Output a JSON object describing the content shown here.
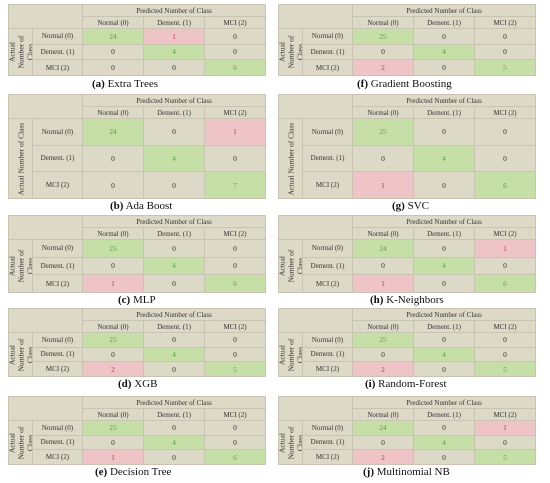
{
  "predicted_label": "Predicted Number of Class",
  "actual_label_long": "Actual Number of Class",
  "actual_label_short": "Actual Number of Class",
  "classes": [
    "Normal (0)",
    "Dement. (1)",
    "MCI (2)"
  ],
  "captions": [
    {
      "letter": "(a)",
      "name": "Extra Trees"
    },
    {
      "letter": "(b)",
      "name": "Ada Boost"
    },
    {
      "letter": "(c)",
      "name": "MLP"
    },
    {
      "letter": "(d)",
      "name": "XGB"
    },
    {
      "letter": "(e)",
      "name": "Decision Tree"
    },
    {
      "letter": "(f)",
      "name": "Gradient Boosting"
    },
    {
      "letter": "(g)",
      "name": "SVC"
    },
    {
      "letter": "(h)",
      "name": "K-Neighbors"
    },
    {
      "letter": "(i)",
      "name": "Random-Forest"
    },
    {
      "letter": "(j)",
      "name": "Multinomial NB"
    }
  ],
  "chart_data": [
    {
      "type": "heatmap",
      "title": "Extra Trees",
      "xlabel": "Predicted Number of Class",
      "ylabel": "Actual Number of Class",
      "rows": [
        "Normal (0)",
        "Dement. (1)",
        "MCI (2)"
      ],
      "cols": [
        "Normal (0)",
        "Dement. (1)",
        "MCI (2)"
      ],
      "values": [
        [
          24,
          1,
          0
        ],
        [
          0,
          4,
          0
        ],
        [
          0,
          0,
          6
        ]
      ]
    },
    {
      "type": "heatmap",
      "title": "Ada Boost",
      "xlabel": "Predicted Number of Class",
      "ylabel": "Actual Number of Class",
      "rows": [
        "Normal (0)",
        "Dement. (1)",
        "MCI (2)"
      ],
      "cols": [
        "Normal (0)",
        "Dement. (1)",
        "MCI (2)"
      ],
      "values": [
        [
          24,
          0,
          1
        ],
        [
          0,
          4,
          0
        ],
        [
          0,
          0,
          7
        ]
      ]
    },
    {
      "type": "heatmap",
      "title": "MLP",
      "xlabel": "Predicted Number of Class",
      "ylabel": "Actual Number of Class",
      "rows": [
        "Normal (0)",
        "Dement. (1)",
        "MCI (2)"
      ],
      "cols": [
        "Normal (0)",
        "Dement. (1)",
        "MCI (2)"
      ],
      "values": [
        [
          25,
          0,
          0
        ],
        [
          0,
          4,
          0
        ],
        [
          1,
          0,
          6
        ]
      ]
    },
    {
      "type": "heatmap",
      "title": "XGB",
      "xlabel": "Predicted Number of Class",
      "ylabel": "Actual Number of Class",
      "rows": [
        "Normal (0)",
        "Dement. (1)",
        "MCI (2)"
      ],
      "cols": [
        "Normal (0)",
        "Dement. (1)",
        "MCI (2)"
      ],
      "values": [
        [
          25,
          0,
          0
        ],
        [
          0,
          4,
          0
        ],
        [
          2,
          0,
          5
        ]
      ]
    },
    {
      "type": "heatmap",
      "title": "Decision Tree",
      "xlabel": "Predicted Number of Class",
      "ylabel": "Actual Number of Class",
      "rows": [
        "Normal (0)",
        "Dement. (1)",
        "MCI (2)"
      ],
      "cols": [
        "Normal (0)",
        "Dement. (1)",
        "MCI (2)"
      ],
      "values": [
        [
          25,
          0,
          0
        ],
        [
          0,
          4,
          0
        ],
        [
          1,
          0,
          6
        ]
      ]
    },
    {
      "type": "heatmap",
      "title": "Gradient Boosting",
      "xlabel": "Predicted Number of Class",
      "ylabel": "Actual Number of Class",
      "rows": [
        "Normal (0)",
        "Dement. (1)",
        "MCI (2)"
      ],
      "cols": [
        "Normal (0)",
        "Dement. (1)",
        "MCI (2)"
      ],
      "values": [
        [
          25,
          0,
          0
        ],
        [
          0,
          4,
          0
        ],
        [
          2,
          0,
          5
        ]
      ]
    },
    {
      "type": "heatmap",
      "title": "SVC",
      "xlabel": "Predicted Number of Class",
      "ylabel": "Actual Number of Class",
      "rows": [
        "Normal (0)",
        "Dement. (1)",
        "MCI (2)"
      ],
      "cols": [
        "Normal (0)",
        "Dement. (1)",
        "MCI (2)"
      ],
      "values": [
        [
          25,
          0,
          0
        ],
        [
          0,
          4,
          0
        ],
        [
          1,
          0,
          6
        ]
      ]
    },
    {
      "type": "heatmap",
      "title": "K-Neighbors",
      "xlabel": "Predicted Number of Class",
      "ylabel": "Actual Number of Class",
      "rows": [
        "Normal (0)",
        "Dement. (1)",
        "MCI (2)"
      ],
      "cols": [
        "Normal (0)",
        "Dement. (1)",
        "MCI (2)"
      ],
      "values": [
        [
          24,
          0,
          1
        ],
        [
          0,
          4,
          0
        ],
        [
          1,
          0,
          6
        ]
      ]
    },
    {
      "type": "heatmap",
      "title": "Random-Forest",
      "xlabel": "Predicted Number of Class",
      "ylabel": "Actual Number of Class",
      "rows": [
        "Normal (0)",
        "Dement. (1)",
        "MCI (2)"
      ],
      "cols": [
        "Normal (0)",
        "Dement. (1)",
        "MCI (2)"
      ],
      "values": [
        [
          25,
          0,
          0
        ],
        [
          0,
          4,
          0
        ],
        [
          2,
          0,
          5
        ]
      ]
    },
    {
      "type": "heatmap",
      "title": "Multinomial NB",
      "xlabel": "Predicted Number of Class",
      "ylabel": "Actual Number of Class",
      "rows": [
        "Normal (0)",
        "Dement. (1)",
        "MCI (2)"
      ],
      "cols": [
        "Normal (0)",
        "Dement. (1)",
        "MCI (2)"
      ],
      "values": [
        [
          24,
          0,
          1
        ],
        [
          0,
          4,
          0
        ],
        [
          2,
          0,
          5
        ]
      ]
    }
  ],
  "colors": {
    "correct": "#c5dfa7",
    "correct_text": "#5aa03a",
    "error": "#efc4c7",
    "error_text": "#c0393f",
    "neutral": "#dcd9c6",
    "border": "#c9c4b2"
  }
}
